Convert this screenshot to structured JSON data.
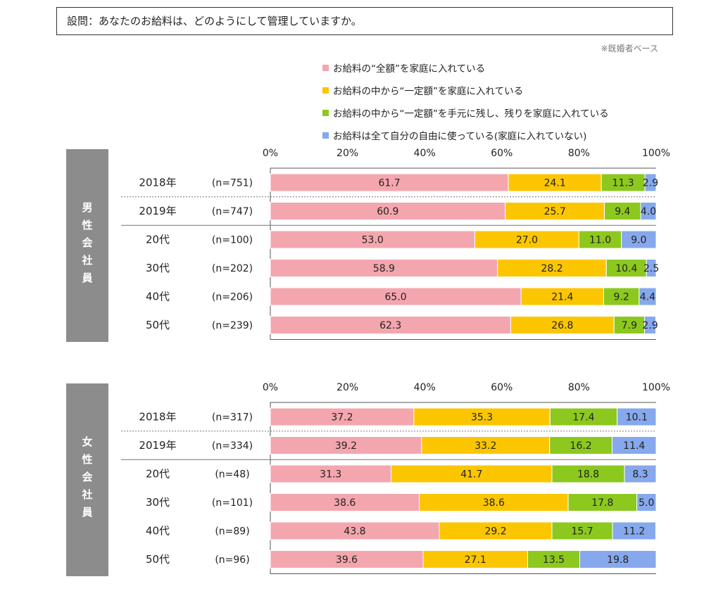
{
  "header": {
    "question": "設問：あなたのお給料は、どのようにして管理していますか。",
    "note": "※既婚者ベース"
  },
  "legend": [
    {
      "label": "お給料の“全額”を家庭に入れている",
      "color": "#f4a6ae"
    },
    {
      "label": "お給料の中から“一定額”を家庭に入れている",
      "color": "#fbc600"
    },
    {
      "label": "お給料の中から“一定額”を手元に残し、残りを家庭に入れている",
      "color": "#8cc81e"
    },
    {
      "label": "お給料は全て自分の自由に使っている(家庭に入れていない)",
      "color": "#86a8ec"
    }
  ],
  "chart_data": [
    {
      "type": "bar",
      "orientation": "horizontal",
      "stacked": true,
      "panel_label": "男性会社員",
      "x_ticks": [
        "0%",
        "20%",
        "40%",
        "60%",
        "80%",
        "100%"
      ],
      "xlim": [
        0,
        100
      ],
      "categories": [
        "2018年",
        "2019年",
        "20代",
        "30代",
        "40代",
        "50代"
      ],
      "n_labels": [
        "(n=751)",
        "(n=747)",
        "(n=100)",
        "(n=202)",
        "(n=206)",
        "(n=239)"
      ],
      "series": [
        {
          "name": "お給料の“全額”を家庭に入れている",
          "values": [
            61.7,
            60.9,
            53.0,
            58.9,
            65.0,
            62.3
          ]
        },
        {
          "name": "お給料の中から“一定額”を家庭に入れている",
          "values": [
            24.1,
            25.7,
            27.0,
            28.2,
            21.4,
            26.8
          ]
        },
        {
          "name": "お給料の中から“一定額”を手元に残し、残りを家庭に入れている",
          "values": [
            11.3,
            9.4,
            11.0,
            10.4,
            9.2,
            7.9
          ]
        },
        {
          "name": "お給料は全て自分の自由に使っている(家庭に入れていない)",
          "values": [
            2.9,
            4.0,
            9.0,
            2.5,
            4.4,
            2.9
          ]
        }
      ],
      "labels": [
        [
          "61.7",
          "24.1",
          "11.3",
          "2.9"
        ],
        [
          "60.9",
          "25.7",
          "9.4",
          "4.0"
        ],
        [
          "53.0",
          "27.0",
          "11.0",
          "9.0"
        ],
        [
          "58.9",
          "28.2",
          "10.4",
          "2.5"
        ],
        [
          "65.0",
          "21.4",
          "9.2",
          "4.4"
        ],
        [
          "62.3",
          "26.8",
          "7.9",
          "2.9"
        ]
      ]
    },
    {
      "type": "bar",
      "orientation": "horizontal",
      "stacked": true,
      "panel_label": "女性会社員",
      "x_ticks": [
        "0%",
        "20%",
        "40%",
        "60%",
        "80%",
        "100%"
      ],
      "xlim": [
        0,
        100
      ],
      "categories": [
        "2018年",
        "2019年",
        "20代",
        "30代",
        "40代",
        "50代"
      ],
      "n_labels": [
        "(n=317)",
        "(n=334)",
        "(n=48)",
        "(n=101)",
        "(n=89)",
        "(n=96)"
      ],
      "series": [
        {
          "name": "お給料の“全額”を家庭に入れている",
          "values": [
            37.2,
            39.2,
            31.3,
            38.6,
            43.8,
            39.6
          ]
        },
        {
          "name": "お給料の中から“一定額”を家庭に入れている",
          "values": [
            35.3,
            33.2,
            41.7,
            38.6,
            29.2,
            27.1
          ]
        },
        {
          "name": "お給料の中から“一定額”を手元に残し、残りを家庭に入れている",
          "values": [
            17.4,
            16.2,
            18.8,
            17.8,
            15.7,
            13.5
          ]
        },
        {
          "name": "お給料は全て自分の自由に使っている(家庭に入れていない)",
          "values": [
            10.1,
            11.4,
            8.3,
            5.0,
            11.2,
            19.8
          ]
        }
      ],
      "labels": [
        [
          "37.2",
          "35.3",
          "17.4",
          "10.1"
        ],
        [
          "39.2",
          "33.2",
          "16.2",
          "11.4"
        ],
        [
          "31.3",
          "41.7",
          "18.8",
          "8.3"
        ],
        [
          "38.6",
          "38.6",
          "17.8",
          "5.0"
        ],
        [
          "43.8",
          "29.2",
          "15.7",
          "11.2"
        ],
        [
          "39.6",
          "27.1",
          "13.5",
          "19.8"
        ]
      ]
    }
  ]
}
